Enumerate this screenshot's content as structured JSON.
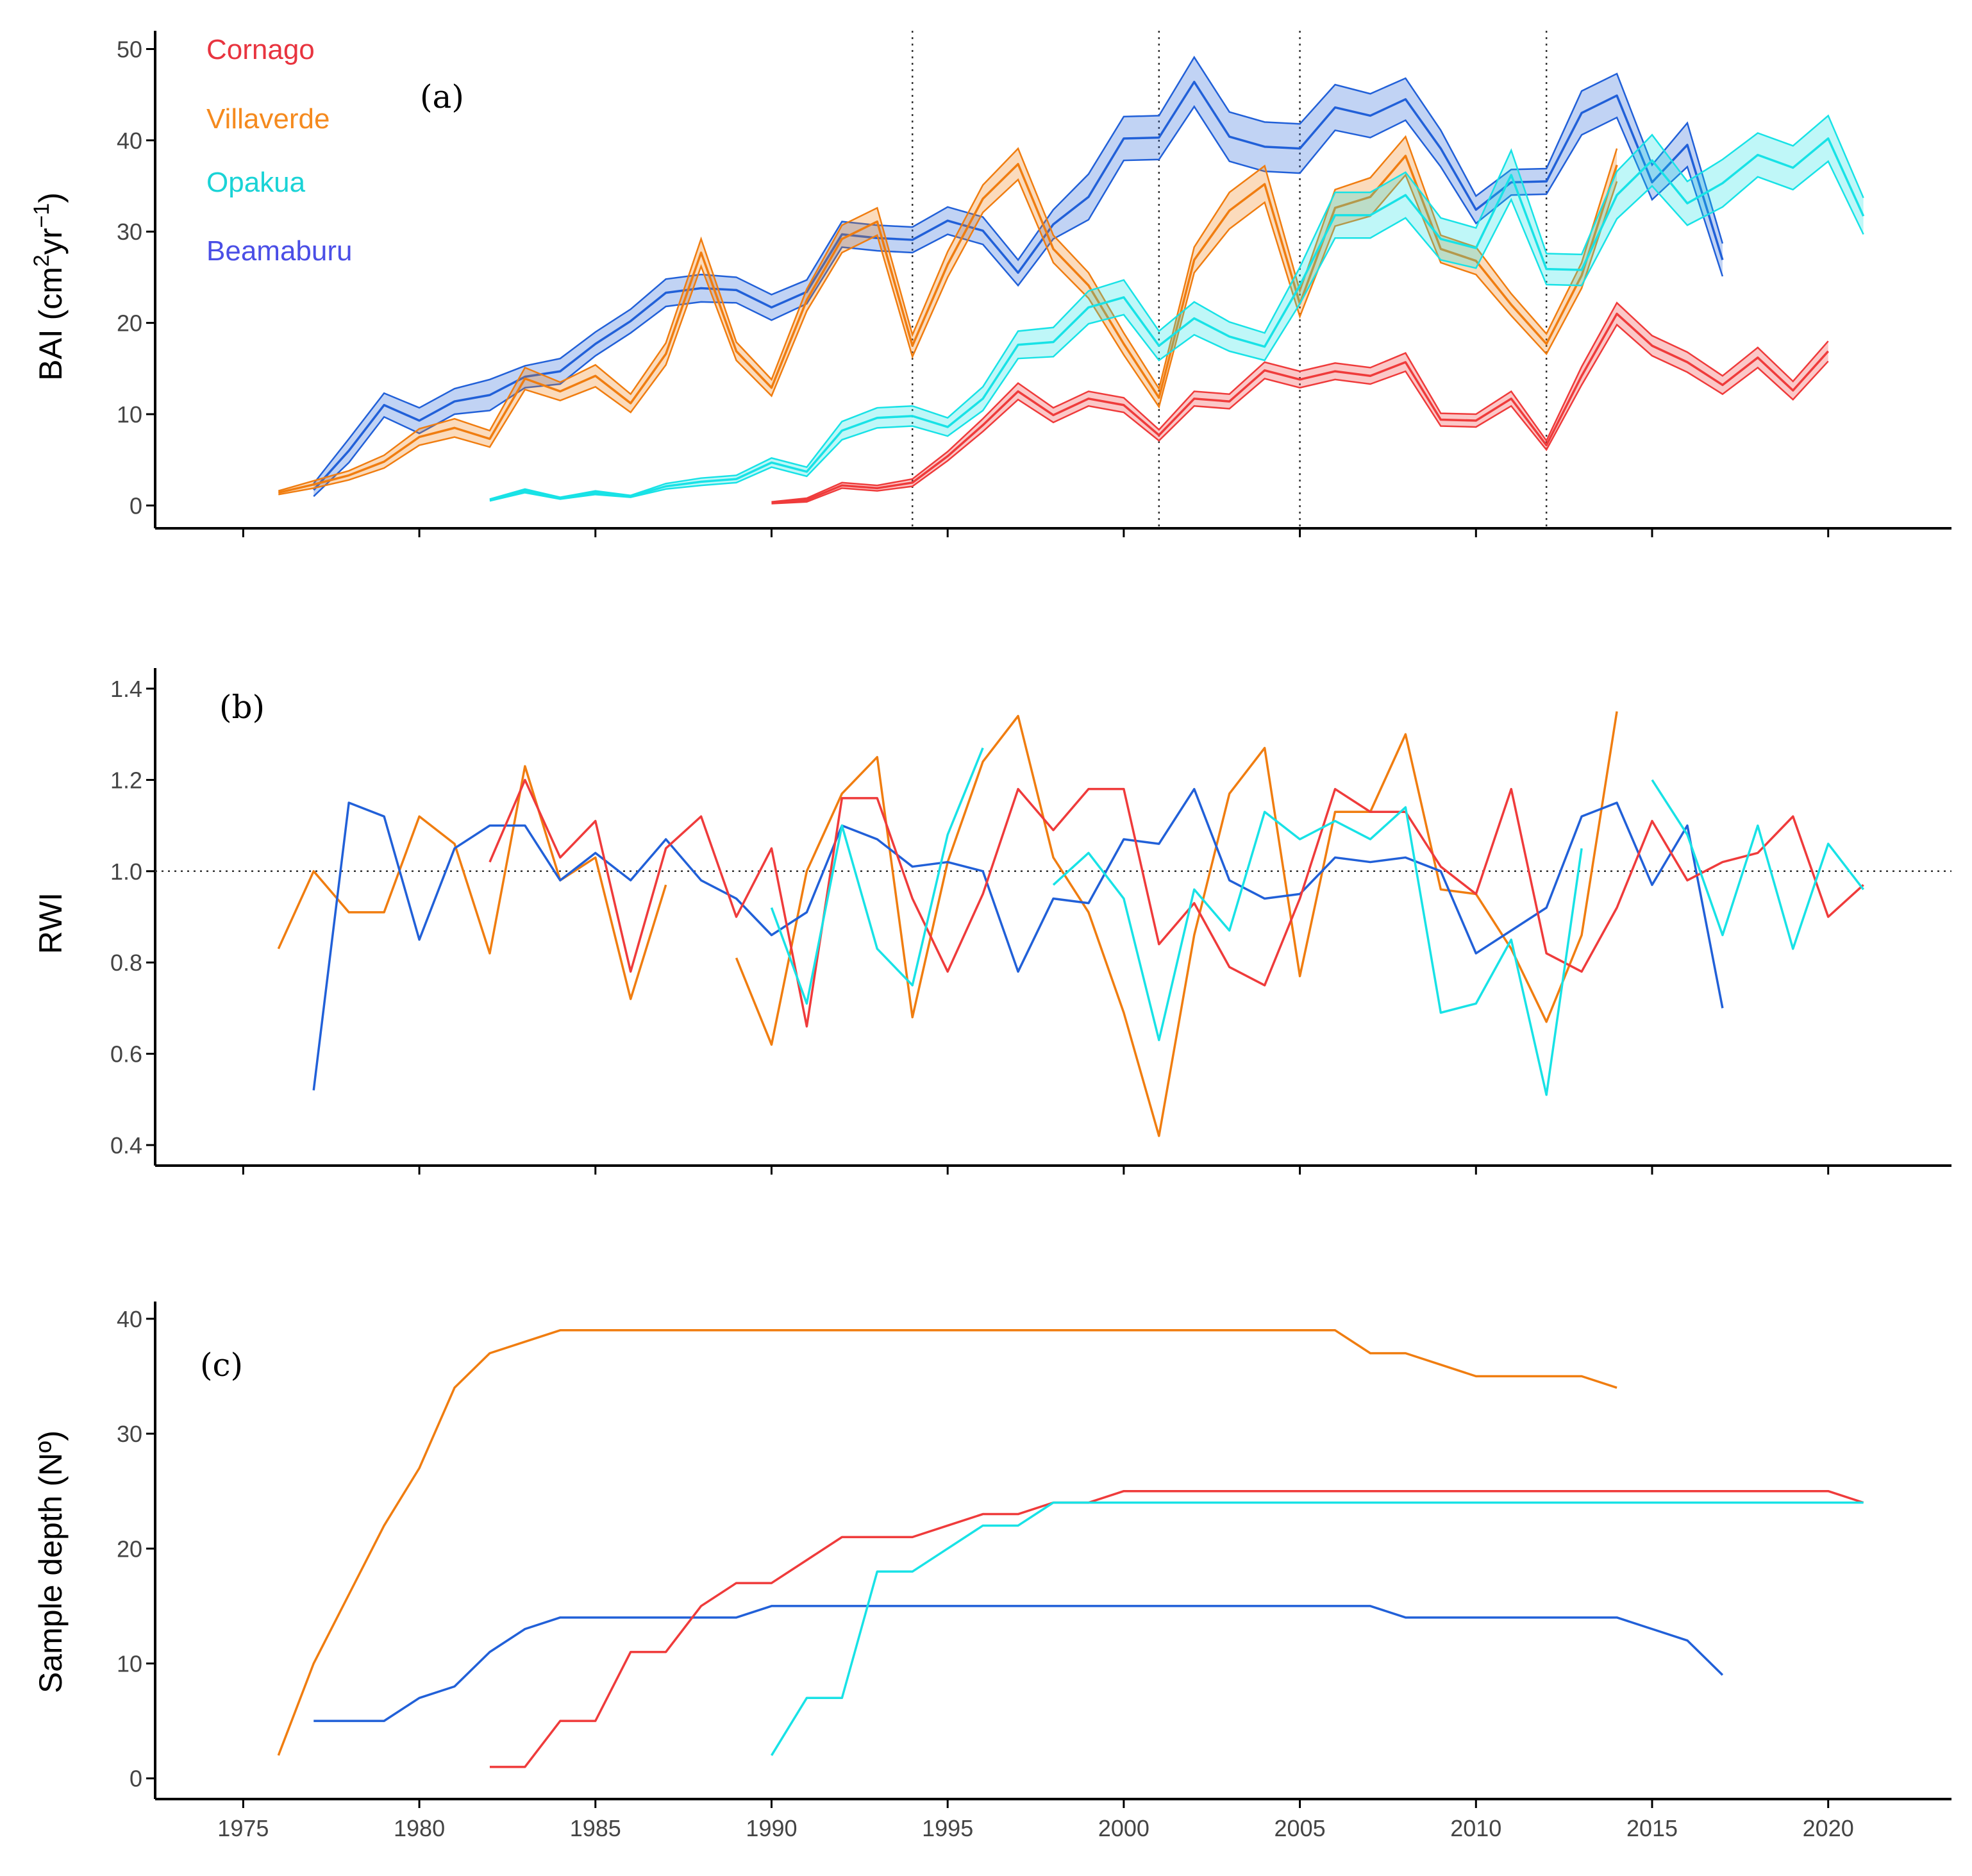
{
  "colors": {
    "Cornago": "#ef3b3b",
    "Villaverde": "#f07d10",
    "Opakua": "#18e2e6",
    "Beamaburu": "#2160d8",
    "axis": "#000000",
    "tick": "#444444"
  },
  "legend": [
    {
      "name": "Cornago",
      "color": "#e8343f"
    },
    {
      "name": "Villaverde",
      "color": "#f58a1e"
    },
    {
      "name": "Opakua",
      "color": "#1ad3d6"
    },
    {
      "name": "Beamaburu",
      "color": "#4a4ee6"
    }
  ],
  "chart_data": [
    {
      "panel": "(a)",
      "type": "area",
      "ylabel": "BAI (cm²yr⁻¹)",
      "ylabel_parts": {
        "base": "BAI (cm",
        "sup1": "2",
        "mid": "yr",
        "sup2": "−1",
        "end": ")"
      },
      "xlim": [
        1972.5,
        2023.5
      ],
      "ylim": [
        -2.5,
        52
      ],
      "yticks": [
        0,
        10,
        20,
        30,
        40,
        50
      ],
      "xticks": [
        1975,
        1980,
        1985,
        1990,
        1995,
        2000,
        2005,
        2010,
        2015,
        2020
      ],
      "vlines": [
        1994,
        2001,
        2005,
        2012
      ],
      "series": [
        {
          "name": "Beamaburu",
          "start": 1977,
          "mean": [
            1.7,
            6,
            11,
            9.3,
            11.4,
            12.1,
            14.1,
            14.7,
            17.7,
            20.2,
            23.3,
            23.8,
            23.6,
            21.7,
            23.4,
            29.7,
            29.3,
            29.1,
            31.2,
            30.1,
            25.5,
            30.8,
            33.8,
            40.2,
            40.3,
            46.4,
            40.4,
            39.3,
            39.1,
            43.6,
            42.7,
            44.5,
            39.1,
            32.4,
            35.4,
            35.5,
            43,
            44.9,
            35.4,
            39.5,
            26.9
          ],
          "band": [
            0.7,
            1.3,
            1.3,
            1.4,
            1.4,
            1.7,
            1.2,
            1.4,
            1.3,
            1.3,
            1.5,
            1.5,
            1.4,
            1.4,
            1.3,
            1.4,
            1.4,
            1.4,
            1.5,
            1.5,
            1.4,
            1.6,
            2.5,
            2.4,
            2.4,
            2.7,
            2.7,
            2.7,
            2.7,
            2.5,
            2.4,
            2.3,
            2,
            1.5,
            1.4,
            1.4,
            2.4,
            2.4,
            1.9,
            2.4,
            1.8
          ]
        },
        {
          "name": "Villaverde",
          "start": 1976,
          "mean": [
            1.4,
            2.3,
            3.3,
            4.8,
            7.5,
            8.5,
            7.3,
            13.9,
            12.5,
            14.2,
            11.2,
            16.6,
            27.7,
            16.9,
            12.9,
            22.5,
            29.2,
            31.1,
            17.5,
            26.4,
            33.6,
            37.4,
            28.1,
            24.1,
            17.7,
            11.8,
            26.9,
            32.3,
            35.2,
            22.1,
            32.6,
            33.8,
            38.3,
            28.1,
            26.8,
            22,
            17.7,
            25.2,
            37.3
          ],
          "band": [
            0.2,
            0.4,
            0.5,
            0.7,
            0.9,
            1,
            0.9,
            1.2,
            1,
            1.2,
            1,
            1.2,
            1.5,
            1,
            0.9,
            1.2,
            1.5,
            1.5,
            1.2,
            1.4,
            1.5,
            1.7,
            1.5,
            1.4,
            1.2,
            1,
            1.4,
            2,
            2,
            1.4,
            2,
            2.1,
            2.1,
            1.5,
            1.5,
            1.2,
            1.1,
            1.4,
            1.8
          ]
        },
        {
          "name": "Opakua",
          "start": 1982,
          "mean": [
            0.6,
            1.6,
            0.8,
            1.4,
            1,
            2.1,
            2.6,
            2.9,
            4.7,
            3.7,
            8.2,
            9.6,
            9.8,
            8.6,
            11.7,
            17.6,
            17.9,
            21.7,
            22.8,
            17.5,
            20.5,
            18.5,
            17.4,
            24.1,
            31.8,
            31.8,
            34,
            29.2,
            28.2,
            36.2,
            25.9,
            25.8,
            34,
            37.8,
            33.1,
            35.3,
            38.4,
            37,
            40.2,
            31.7
          ],
          "band": [
            0.1,
            0.2,
            0.1,
            0.2,
            0.1,
            0.3,
            0.4,
            0.4,
            0.5,
            0.5,
            1,
            1.1,
            1.1,
            1,
            1.3,
            1.5,
            1.6,
            1.8,
            1.9,
            1.6,
            1.8,
            1.6,
            1.5,
            2,
            2.5,
            2.5,
            2.5,
            2.3,
            2.2,
            2.7,
            1.7,
            1.7,
            2.6,
            2.8,
            2.4,
            2.6,
            2.4,
            2.4,
            2.5,
            2
          ]
        },
        {
          "name": "Cornago",
          "start": 1990,
          "mean": [
            0.3,
            0.6,
            2.2,
            1.9,
            2.5,
            5.4,
            8.8,
            12.5,
            9.9,
            11.7,
            11,
            7.7,
            11.7,
            11.4,
            14.8,
            13.8,
            14.7,
            14.2,
            15.7,
            9.4,
            9.3,
            11.7,
            6.6,
            14.2,
            21,
            17.5,
            15.7,
            13.2,
            16.2,
            12.6,
            16.9
          ],
          "band": [
            0.1,
            0.2,
            0.3,
            0.3,
            0.4,
            0.5,
            0.7,
            0.9,
            0.8,
            0.8,
            0.8,
            0.6,
            0.8,
            0.8,
            0.9,
            0.9,
            0.9,
            0.9,
            1,
            0.7,
            0.7,
            0.8,
            0.5,
            1,
            1.2,
            1.1,
            1.1,
            1,
            1.1,
            1,
            1.1
          ]
        }
      ]
    },
    {
      "panel": "(b)",
      "type": "line",
      "ylabel": "RWI",
      "xlim": [
        1972.5,
        2023.5
      ],
      "ylim": [
        0.355,
        1.445
      ],
      "yticks": [
        0.4,
        0.6,
        0.8,
        1.0,
        1.2,
        1.4
      ],
      "ytick_labels": [
        "0.4",
        "0.6",
        "0.8",
        "1.0",
        "1.2",
        "1.4"
      ],
      "xticks": [
        1975,
        1980,
        1985,
        1990,
        1995,
        2000,
        2005,
        2010,
        2015,
        2020
      ],
      "hline": 1.0,
      "series": [
        {
          "name": "Villaverde",
          "segments": [
            {
              "start": 1976,
              "values": [
                0.83,
                1.0,
                0.91,
                0.91,
                1.12,
                1.06,
                0.82,
                1.23,
                0.98,
                1.03,
                0.72,
                0.97
              ]
            },
            {
              "start": 1989,
              "values": [
                0.81,
                0.62,
                1.0,
                1.17,
                1.25,
                0.68,
                1.02,
                1.24,
                1.34,
                1.03,
                0.91,
                0.69,
                0.42,
                0.86,
                1.17,
                1.27,
                0.77,
                1.13,
                1.13,
                1.3,
                0.96,
                0.95,
                0.83,
                0.67,
                0.86,
                1.35
              ]
            }
          ]
        },
        {
          "name": "Beamaburu",
          "segments": [
            {
              "start": 1977,
              "values": [
                0.52,
                1.15,
                1.12,
                0.85,
                1.05,
                1.1,
                1.1,
                0.98,
                1.04,
                0.98,
                1.07,
                0.98,
                0.94,
                0.86,
                0.91,
                1.1,
                1.07,
                1.01,
                1.02,
                1.0,
                0.78,
                0.94,
                0.93,
                1.07,
                1.06,
                1.18,
                0.98,
                0.94,
                0.95,
                1.03,
                1.02,
                1.03,
                1.0,
                0.82,
                0.87,
                0.92,
                1.12,
                1.15,
                0.97,
                1.1,
                0.7
              ]
            }
          ]
        },
        {
          "name": "Cornago",
          "segments": [
            {
              "start": 1982,
              "values": [
                1.02,
                1.2,
                1.03,
                1.11,
                0.78,
                1.05,
                1.12,
                0.9,
                1.05,
                0.66,
                1.16,
                1.16,
                0.94,
                0.78,
                0.95,
                1.18,
                1.09,
                1.18,
                1.18,
                0.84,
                0.93,
                0.79,
                0.75,
                0.94,
                1.18,
                1.13,
                1.13,
                1.01,
                0.95,
                1.18,
                0.82,
                0.78,
                0.92,
                1.11,
                0.98,
                1.02,
                1.04,
                1.12,
                0.9,
                0.97
              ]
            }
          ]
        },
        {
          "name": "Opakua",
          "segments": [
            {
              "start": 1990,
              "values": [
                0.92,
                0.71,
                1.1,
                0.83,
                0.75,
                1.08,
                1.27
              ]
            },
            {
              "start": 1998,
              "values": [
                0.97,
                1.04,
                0.94,
                0.63,
                0.96,
                0.87,
                1.13,
                1.07,
                1.11,
                1.07,
                1.14,
                0.69,
                0.71,
                0.85,
                0.51,
                1.05
              ]
            },
            {
              "start": 2015,
              "values": [
                1.2,
                1.08,
                0.86,
                1.1,
                0.83,
                1.06,
                0.96
              ]
            }
          ]
        }
      ]
    },
    {
      "panel": "(c)",
      "type": "line",
      "ylabel": "Sample depth (Nº)",
      "xlim": [
        1972.5,
        2023.5
      ],
      "ylim": [
        -1.8,
        41.5
      ],
      "yticks": [
        0,
        10,
        20,
        30,
        40
      ],
      "xticks": [
        1975,
        1980,
        1985,
        1990,
        1995,
        2000,
        2005,
        2010,
        2015,
        2020
      ],
      "series": [
        {
          "name": "Villaverde",
          "start": 1976,
          "values": [
            2,
            10,
            16,
            22,
            27,
            34,
            37,
            38,
            39,
            39,
            39,
            39,
            39,
            39,
            39,
            39,
            39,
            39,
            39,
            39,
            39,
            39,
            39,
            39,
            39,
            39,
            39,
            39,
            39,
            39,
            39,
            37,
            37,
            36,
            35,
            35,
            35,
            35,
            34
          ]
        },
        {
          "name": "Beamaburu",
          "start": 1977,
          "values": [
            5,
            5,
            5,
            7,
            8,
            11,
            13,
            14,
            14,
            14,
            14,
            14,
            14,
            15,
            15,
            15,
            15,
            15,
            15,
            15,
            15,
            15,
            15,
            15,
            15,
            15,
            15,
            15,
            15,
            15,
            15,
            14,
            14,
            14,
            14,
            14,
            14,
            14,
            13,
            12,
            9
          ]
        },
        {
          "name": "Cornago",
          "start": 1982,
          "values": [
            1,
            1,
            5,
            5,
            11,
            11,
            15,
            17,
            17,
            19,
            21,
            21,
            21,
            22,
            23,
            23,
            24,
            24,
            25,
            25,
            25,
            25,
            25,
            25,
            25,
            25,
            25,
            25,
            25,
            25,
            25,
            25,
            25,
            25,
            25,
            25,
            25,
            25,
            25,
            24
          ]
        },
        {
          "name": "Opakua",
          "start": 1990,
          "values": [
            2,
            7,
            7,
            18,
            18,
            20,
            22,
            22,
            24,
            24,
            24,
            24,
            24,
            24,
            24,
            24,
            24,
            24,
            24,
            24,
            24,
            24,
            24,
            24,
            24,
            24,
            24,
            24,
            24,
            24,
            24,
            24
          ]
        }
      ]
    }
  ]
}
